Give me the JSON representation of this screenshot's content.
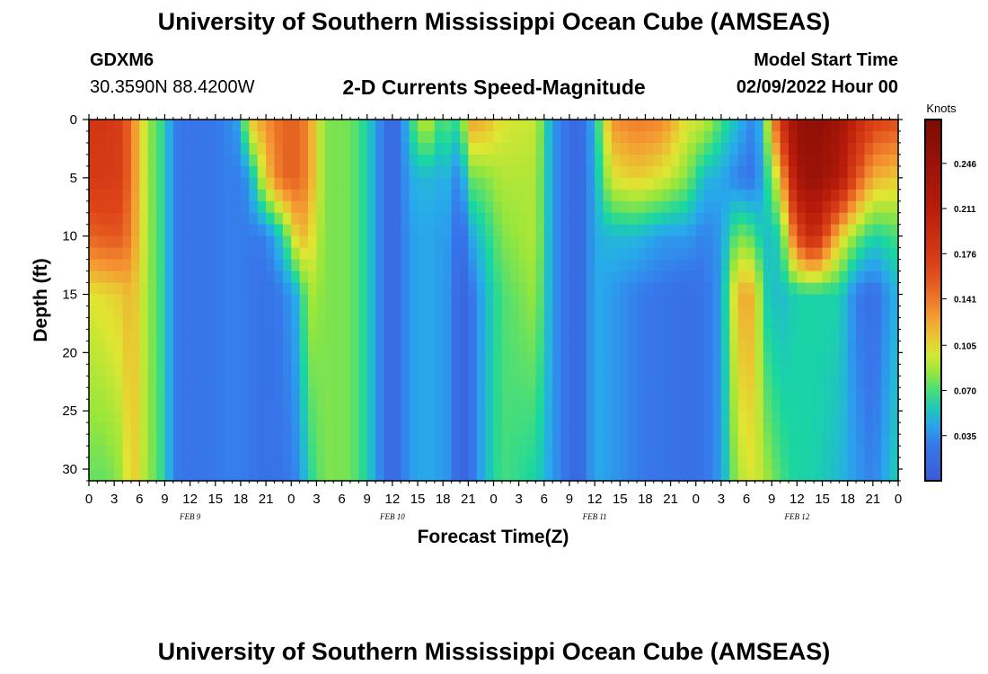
{
  "header": {
    "title": "University of Southern Mississippi Ocean Cube (AMSEAS)",
    "station": "GDXM6",
    "coords": "30.3590N  88.4200W",
    "model_start_label": "Model Start Time",
    "model_start_value": "02/09/2022 Hour 00"
  },
  "footer": {
    "title": "University of Southern Mississippi Ocean Cube (AMSEAS)"
  },
  "chart_data": {
    "type": "heatmap",
    "title": "2-D Currents Speed-Magnitude",
    "xlabel": "Forecast Time(Z)",
    "ylabel": "Depth (ft)",
    "x_unit": "hours since model start",
    "xlim": [
      0,
      96
    ],
    "ylim": [
      0,
      31
    ],
    "x_ticks": [
      0,
      3,
      6,
      9,
      12,
      15,
      18,
      21,
      24,
      27,
      30,
      33,
      36,
      39,
      42,
      45,
      48,
      51,
      54,
      57,
      60,
      63,
      66,
      69,
      72,
      75,
      78,
      81,
      84,
      87,
      90,
      93,
      96
    ],
    "x_tick_labels": [
      "0",
      "3",
      "6",
      "9",
      "12",
      "15",
      "18",
      "21",
      "0",
      "3",
      "6",
      "9",
      "12",
      "15",
      "18",
      "21",
      "0",
      "3",
      "6",
      "9",
      "12",
      "15",
      "18",
      "21",
      "0",
      "3",
      "6",
      "9",
      "12",
      "15",
      "18",
      "21",
      "0"
    ],
    "y_ticks": [
      0,
      5,
      10,
      15,
      20,
      25,
      30
    ],
    "y_tick_labels": [
      "0",
      "5",
      "10",
      "15",
      "20",
      "25",
      "30"
    ],
    "day_labels": [
      {
        "text": "FEB 9",
        "hour": 12
      },
      {
        "text": "FEB 10",
        "hour": 36
      },
      {
        "text": "FEB 11",
        "hour": 60
      },
      {
        "text": "FEB 12",
        "hour": 84
      }
    ],
    "colorbar": {
      "unit": "Knots",
      "min": 0.0,
      "max": 0.28,
      "ticks": [
        0.035,
        0.07,
        0.105,
        0.141,
        0.176,
        0.211,
        0.246
      ],
      "tick_labels": [
        "0.035",
        "0.070",
        "0.105",
        "0.141",
        "0.176",
        "0.211",
        "0.246"
      ]
    },
    "columns": [
      {
        "t": 0,
        "s": [
          0.18,
          0.175,
          0.15,
          0.1,
          0.075
        ]
      },
      {
        "t": 2,
        "s": [
          0.18,
          0.175,
          0.155,
          0.105,
          0.075
        ]
      },
      {
        "t": 4,
        "s": [
          0.17,
          0.17,
          0.155,
          0.11,
          0.085
        ]
      },
      {
        "t": 5,
        "s": [
          0.14,
          0.14,
          0.135,
          0.12,
          0.115
        ]
      },
      {
        "t": 7,
        "s": [
          0.085,
          0.085,
          0.085,
          0.085,
          0.085
        ]
      },
      {
        "t": 9,
        "s": [
          0.062,
          0.062,
          0.062,
          0.062,
          0.062
        ]
      },
      {
        "t": 10,
        "s": [
          0.03,
          0.03,
          0.03,
          0.03,
          0.03
        ]
      },
      {
        "t": 13,
        "s": [
          0.025,
          0.025,
          0.025,
          0.025,
          0.025
        ]
      },
      {
        "t": 16,
        "s": [
          0.03,
          0.03,
          0.03,
          0.03,
          0.03
        ]
      },
      {
        "t": 18,
        "s": [
          0.045,
          0.03,
          0.03,
          0.03,
          0.03
        ]
      },
      {
        "t": 19,
        "s": [
          0.11,
          0.04,
          0.028,
          0.028,
          0.028
        ]
      },
      {
        "t": 21,
        "s": [
          0.13,
          0.11,
          0.03,
          0.022,
          0.022
        ]
      },
      {
        "t": 23,
        "s": [
          0.15,
          0.15,
          0.06,
          0.03,
          0.025
        ]
      },
      {
        "t": 25,
        "s": [
          0.15,
          0.15,
          0.12,
          0.05,
          0.035
        ]
      },
      {
        "t": 26,
        "s": [
          0.13,
          0.13,
          0.11,
          0.09,
          0.06
        ]
      },
      {
        "t": 28,
        "s": [
          0.08,
          0.08,
          0.08,
          0.08,
          0.08
        ]
      },
      {
        "t": 31,
        "s": [
          0.078,
          0.078,
          0.078,
          0.078,
          0.078
        ]
      },
      {
        "t": 33,
        "s": [
          0.06,
          0.06,
          0.06,
          0.06,
          0.06
        ]
      },
      {
        "t": 35,
        "s": [
          0.025,
          0.025,
          0.025,
          0.025,
          0.025
        ]
      },
      {
        "t": 36,
        "s": [
          0.01,
          0.01,
          0.01,
          0.01,
          0.01
        ]
      },
      {
        "t": 37,
        "s": [
          0.025,
          0.025,
          0.025,
          0.025,
          0.025
        ]
      },
      {
        "t": 38,
        "s": [
          0.06,
          0.045,
          0.04,
          0.04,
          0.04
        ]
      },
      {
        "t": 40,
        "s": [
          0.1,
          0.05,
          0.045,
          0.045,
          0.045
        ]
      },
      {
        "t": 42,
        "s": [
          0.06,
          0.045,
          0.04,
          0.04,
          0.04
        ]
      },
      {
        "t": 43,
        "s": [
          0.085,
          0.05,
          0.04,
          0.035,
          0.035
        ]
      },
      {
        "t": 44,
        "s": [
          0.05,
          0.02,
          0.01,
          0.005,
          0.005
        ]
      },
      {
        "t": 45,
        "s": [
          0.125,
          0.075,
          0.04,
          0.02,
          0.02
        ]
      },
      {
        "t": 47,
        "s": [
          0.12,
          0.08,
          0.06,
          0.05,
          0.05
        ]
      },
      {
        "t": 49,
        "s": [
          0.1,
          0.09,
          0.08,
          0.07,
          0.07
        ]
      },
      {
        "t": 53,
        "s": [
          0.095,
          0.09,
          0.09,
          0.085,
          0.06
        ]
      },
      {
        "t": 55,
        "s": [
          0.04,
          0.04,
          0.04,
          0.04,
          0.04
        ]
      },
      {
        "t": 58,
        "s": [
          0.01,
          0.01,
          0.01,
          0.01,
          0.01
        ]
      },
      {
        "t": 60,
        "s": [
          0.05,
          0.045,
          0.045,
          0.045,
          0.045
        ]
      },
      {
        "t": 62,
        "s": [
          0.13,
          0.1,
          0.05,
          0.04,
          0.04
        ]
      },
      {
        "t": 65,
        "s": [
          0.14,
          0.11,
          0.05,
          0.03,
          0.03
        ]
      },
      {
        "t": 68,
        "s": [
          0.135,
          0.1,
          0.04,
          0.025,
          0.025
        ]
      },
      {
        "t": 71,
        "s": [
          0.1,
          0.08,
          0.04,
          0.02,
          0.02
        ]
      },
      {
        "t": 73,
        "s": [
          0.095,
          0.05,
          0.03,
          0.025,
          0.025
        ]
      },
      {
        "t": 75,
        "s": [
          0.07,
          0.045,
          0.04,
          0.04,
          0.04
        ]
      },
      {
        "t": 77,
        "s": [
          0.05,
          0.03,
          0.08,
          0.12,
          0.09
        ]
      },
      {
        "t": 79,
        "s": [
          0.03,
          0.025,
          0.07,
          0.12,
          0.1
        ]
      },
      {
        "t": 80,
        "s": [
          0.06,
          0.05,
          0.05,
          0.06,
          0.09
        ]
      },
      {
        "t": 82,
        "s": [
          0.18,
          0.11,
          0.06,
          0.05,
          0.07
        ]
      },
      {
        "t": 84,
        "s": [
          0.25,
          0.23,
          0.16,
          0.06,
          0.06
        ]
      },
      {
        "t": 86,
        "s": [
          0.26,
          0.25,
          0.2,
          0.06,
          0.06
        ]
      },
      {
        "t": 89,
        "s": [
          0.24,
          0.22,
          0.11,
          0.06,
          0.05
        ]
      },
      {
        "t": 91,
        "s": [
          0.2,
          0.16,
          0.08,
          0.03,
          0.04
        ]
      },
      {
        "t": 93,
        "s": [
          0.17,
          0.12,
          0.06,
          0.02,
          0.03
        ]
      },
      {
        "t": 96,
        "s": [
          0.16,
          0.11,
          0.07,
          0.05,
          0.06
        ]
      }
    ]
  }
}
